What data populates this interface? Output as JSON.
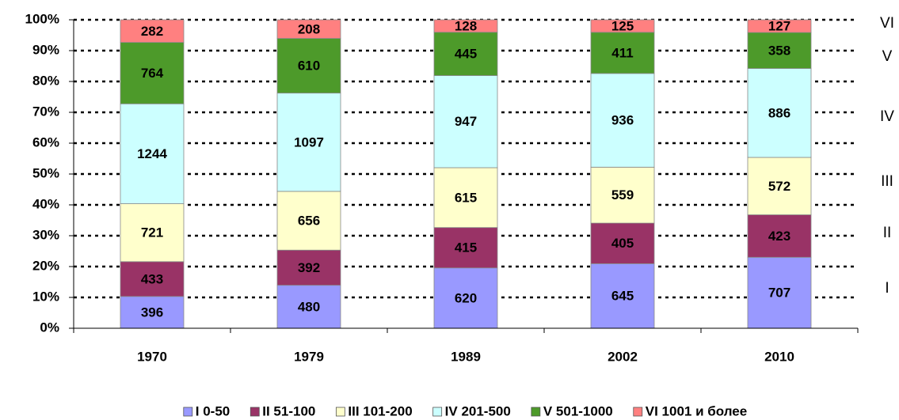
{
  "chart_data": {
    "type": "bar",
    "stack": "percent",
    "categories": [
      "1970",
      "1979",
      "1989",
      "2002",
      "2010"
    ],
    "series": [
      {
        "name": "I 0-50",
        "color": "#9999ff",
        "label_color": "#ffffff",
        "values": [
          396,
          480,
          620,
          645,
          707
        ]
      },
      {
        "name": "II 51-100",
        "color": "#993366",
        "label_color": "#ffffff",
        "values": [
          433,
          392,
          415,
          405,
          423
        ]
      },
      {
        "name": "III 101-200",
        "color": "#ffffcc",
        "label_color": "#000000",
        "values": [
          721,
          656,
          615,
          559,
          572
        ]
      },
      {
        "name": "IV 201-500",
        "color": "#ccffff",
        "label_color": "#000000",
        "values": [
          1244,
          1097,
          947,
          936,
          886
        ]
      },
      {
        "name": "V 501-1000",
        "color": "#4d9a2a",
        "label_color": "#000000",
        "values": [
          764,
          610,
          445,
          411,
          358
        ]
      },
      {
        "name": "VI 1001 и более",
        "color": "#ff8080",
        "label_color": "#000000",
        "values": [
          282,
          208,
          128,
          125,
          127
        ]
      }
    ],
    "annotations": [
      "I",
      "II",
      "III",
      "IV",
      "V",
      "VI"
    ],
    "ylim": [
      0,
      100
    ],
    "yticks": [
      {
        "value": 0,
        "label": "0%"
      },
      {
        "value": 10,
        "label": "10%"
      },
      {
        "value": 20,
        "label": "20%"
      },
      {
        "value": 30,
        "label": "30%"
      },
      {
        "value": 40,
        "label": "40%"
      },
      {
        "value": 50,
        "label": "50%"
      },
      {
        "value": 60,
        "label": "60%"
      },
      {
        "value": 70,
        "label": "70%"
      },
      {
        "value": 80,
        "label": "80%"
      },
      {
        "value": 90,
        "label": "90%"
      },
      {
        "value": 100,
        "label": "100%"
      }
    ],
    "grid": true,
    "legend": "bottom"
  }
}
